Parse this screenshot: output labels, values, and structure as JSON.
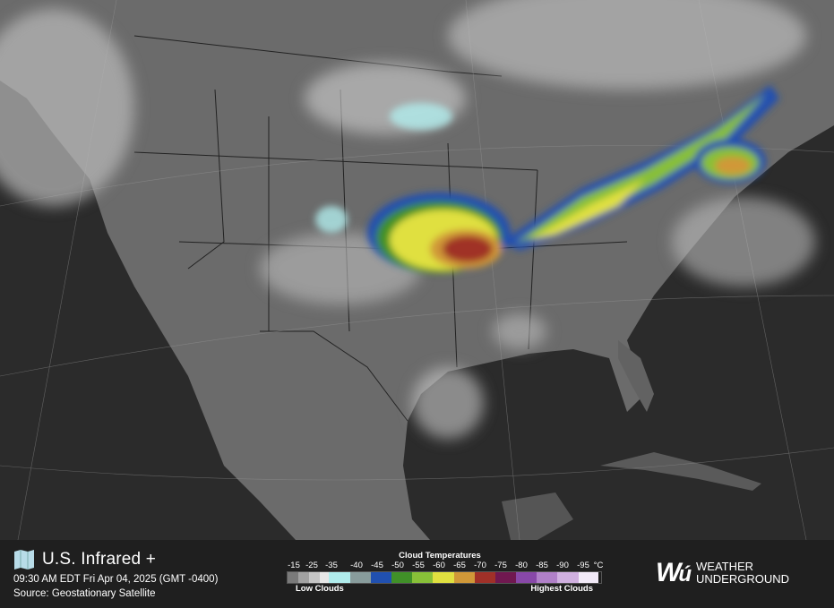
{
  "header": {
    "title": "U.S. Infrared +",
    "timestamp": "09:30 AM EDT Fri Apr 04, 2025 (GMT -0400)",
    "source": "Source: Geostationary Satellite",
    "icon": "map-icon"
  },
  "legend": {
    "title": "Cloud Temperatures",
    "unit": "°C",
    "low_label": "Low Clouds",
    "high_label": "Highest Clouds",
    "ticks": [
      "-15",
      "-25",
      "-35",
      "-40",
      "-45",
      "-50",
      "-55",
      "-60",
      "-65",
      "-70",
      "-75",
      "-80",
      "-85",
      "-90",
      "-95"
    ],
    "colors": [
      "#7a7a7a",
      "#a2a2a2",
      "#c6c6c6",
      "#e6e6e6",
      "#b0ecec",
      "#889c9c",
      "#2050b0",
      "#409028",
      "#88c038",
      "#e0e040",
      "#d09838",
      "#a03028",
      "#701850",
      "#8848a8",
      "#b080c8",
      "#d0b0e0",
      "#f2eaf8"
    ]
  },
  "brand": {
    "logo_mark": "wu",
    "line1": "WEATHER",
    "line2": "UNDERGROUND"
  },
  "map": {
    "ocean_color": "#2b2b2b",
    "land_color": "#6b6b6b"
  }
}
